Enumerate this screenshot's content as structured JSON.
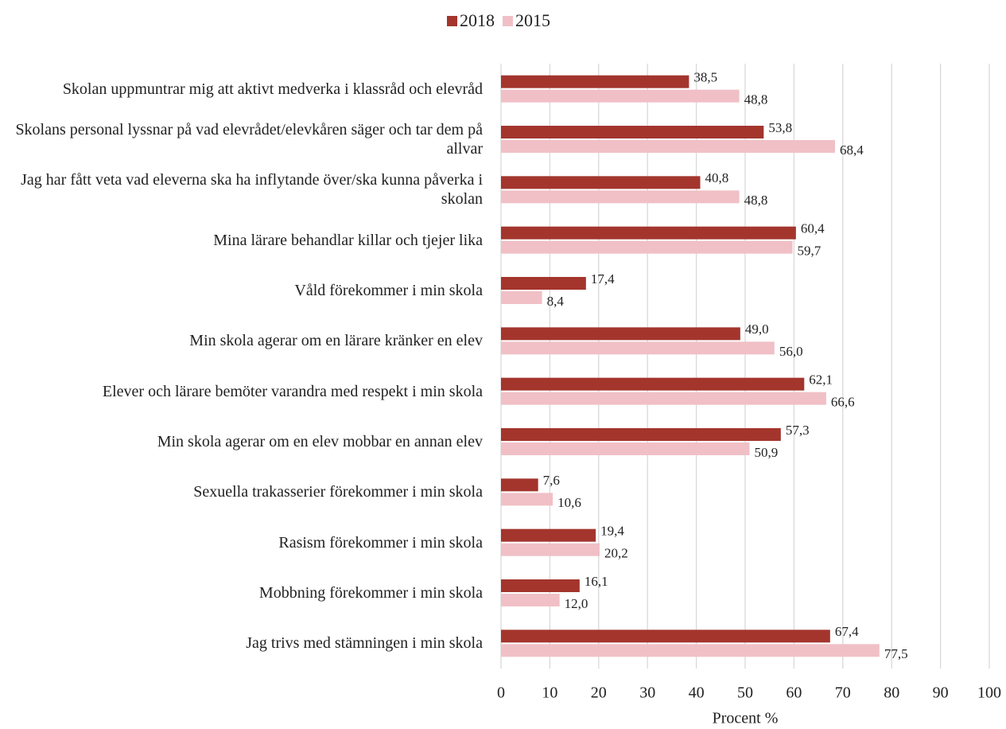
{
  "chart_data": {
    "type": "barh",
    "xlabel": "Procent %",
    "categories": [
      "Skolan uppmuntrar mig att aktivt medverka i klassråd och elevråd",
      "Skolans personal lyssnar på vad elevrådet/elevkåren säger och tar dem på allvar",
      "Jag har fått veta vad eleverna ska ha inflytande över/ska kunna påverka i skolan",
      "Mina lärare behandlar killar och tjejer lika",
      "Våld förekommer i min skola",
      "Min skola agerar om en lärare kränker en elev",
      "Elever och lärare bemöter varandra med respekt i min skola",
      "Min skola agerar om en elev mobbar en annan elev",
      "Sexuella trakasserier förekommer i min skola",
      "Rasism förekommer i min skola",
      "Mobbning förekommer i min skola",
      "Jag trivs med stämningen i min skola"
    ],
    "series": [
      {
        "name": "2018",
        "color": "#a3352d",
        "values": [
          38.5,
          53.8,
          40.8,
          60.4,
          17.4,
          49.0,
          62.1,
          57.3,
          7.6,
          19.4,
          16.1,
          67.4
        ],
        "value_labels": [
          "38,5",
          "53,8",
          "40,8",
          "60,4",
          "17,4",
          "49,0",
          "62,1",
          "57,3",
          "7,6",
          "19,4",
          "16,1",
          "67,4"
        ]
      },
      {
        "name": "2015",
        "color": "#f0c0c6",
        "values": [
          48.8,
          68.4,
          48.8,
          59.7,
          8.4,
          56.0,
          66.6,
          50.9,
          10.6,
          20.2,
          12.0,
          77.5
        ],
        "value_labels": [
          "48,8",
          "68,4",
          "48,8",
          "59,7",
          "8,4",
          "56,0",
          "66,6",
          "50,9",
          "10,6",
          "20,2",
          "12,0",
          "77,5"
        ]
      }
    ],
    "xlim": [
      0,
      100
    ],
    "xticks": [
      0,
      10,
      20,
      30,
      40,
      50,
      60,
      70,
      80,
      90,
      100
    ],
    "grid": true,
    "legend": "top"
  }
}
